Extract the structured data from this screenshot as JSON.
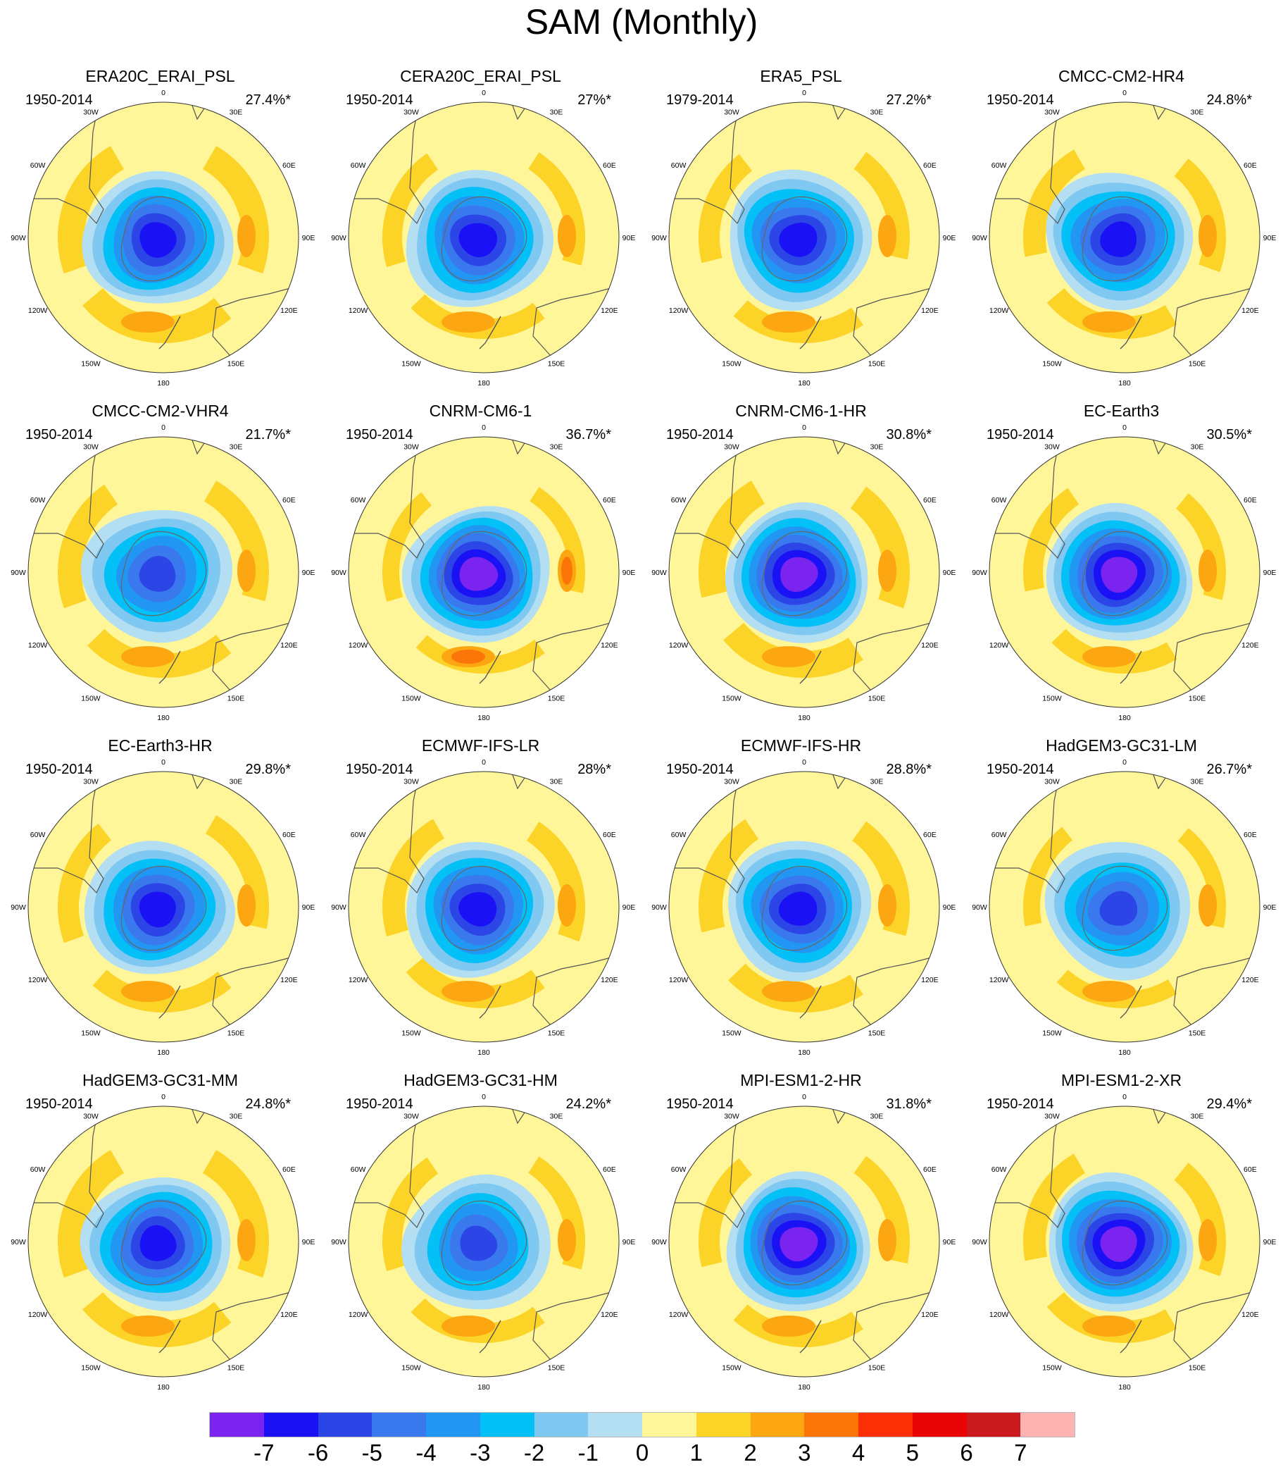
{
  "title": "SAM (Monthly)",
  "longitude_labels": [
    "0",
    "30E",
    "60E",
    "90E",
    "120E",
    "150E",
    "180",
    "150W",
    "120W",
    "90W",
    "60W",
    "30W"
  ],
  "panels": [
    {
      "name": "ERA20C_ERAI_PSL",
      "period": "1950-2014",
      "variance": "27.4%*",
      "low_level": 6,
      "high_level": 3
    },
    {
      "name": "CERA20C_ERAI_PSL",
      "period": "1950-2014",
      "variance": "27%*",
      "low_level": 6,
      "high_level": 3
    },
    {
      "name": "ERA5_PSL",
      "period": "1979-2014",
      "variance": "27.2%*",
      "low_level": 6,
      "high_level": 3
    },
    {
      "name": "CMCC-CM2-HR4",
      "period": "1950-2014",
      "variance": "24.8%*",
      "low_level": 6,
      "high_level": 3
    },
    {
      "name": "CMCC-CM2-VHR4",
      "period": "1950-2014",
      "variance": "21.7%*",
      "low_level": 5,
      "high_level": 3
    },
    {
      "name": "CNRM-CM6-1",
      "period": "1950-2014",
      "variance": "36.7%*",
      "low_level": 7,
      "high_level": 4
    },
    {
      "name": "CNRM-CM6-1-HR",
      "period": "1950-2014",
      "variance": "30.8%*",
      "low_level": 7,
      "high_level": 3
    },
    {
      "name": "EC-Earth3",
      "period": "1950-2014",
      "variance": "30.5%*",
      "low_level": 7,
      "high_level": 3
    },
    {
      "name": "EC-Earth3-HR",
      "period": "1950-2014",
      "variance": "29.8%*",
      "low_level": 6,
      "high_level": 3
    },
    {
      "name": "ECMWF-IFS-LR",
      "period": "1950-2014",
      "variance": "28%*",
      "low_level": 6,
      "high_level": 3
    },
    {
      "name": "ECMWF-IFS-HR",
      "period": "1950-2014",
      "variance": "28.8%*",
      "low_level": 6,
      "high_level": 3
    },
    {
      "name": "HadGEM3-GC31-LM",
      "period": "1950-2014",
      "variance": "26.7%*",
      "low_level": 5,
      "high_level": 3
    },
    {
      "name": "HadGEM3-GC31-MM",
      "period": "1950-2014",
      "variance": "24.8%*",
      "low_level": 6,
      "high_level": 3
    },
    {
      "name": "HadGEM3-GC31-HM",
      "period": "1950-2014",
      "variance": "24.2%*",
      "low_level": 5,
      "high_level": 3
    },
    {
      "name": "MPI-ESM1-2-HR",
      "period": "1950-2014",
      "variance": "31.8%*",
      "low_level": 7,
      "high_level": 3
    },
    {
      "name": "MPI-ESM1-2-XR",
      "period": "1950-2014",
      "variance": "29.4%*",
      "low_level": 7,
      "high_level": 3
    }
  ],
  "colorbar": {
    "labels": [
      "-7",
      "-6",
      "-5",
      "-4",
      "-3",
      "-2",
      "-1",
      "0",
      "1",
      "2",
      "3",
      "4",
      "5",
      "6",
      "7"
    ],
    "colors": [
      "#7b24f0",
      "#1a12f5",
      "#2b45e6",
      "#3a78ee",
      "#2196f3",
      "#03c0f7",
      "#7ec8f2",
      "#b4def2",
      "#fff69a",
      "#fcd427",
      "#fca612",
      "#fc7509",
      "#fc2e05",
      "#e80405",
      "#cb1a1d",
      "#ffb3b3"
    ]
  }
}
